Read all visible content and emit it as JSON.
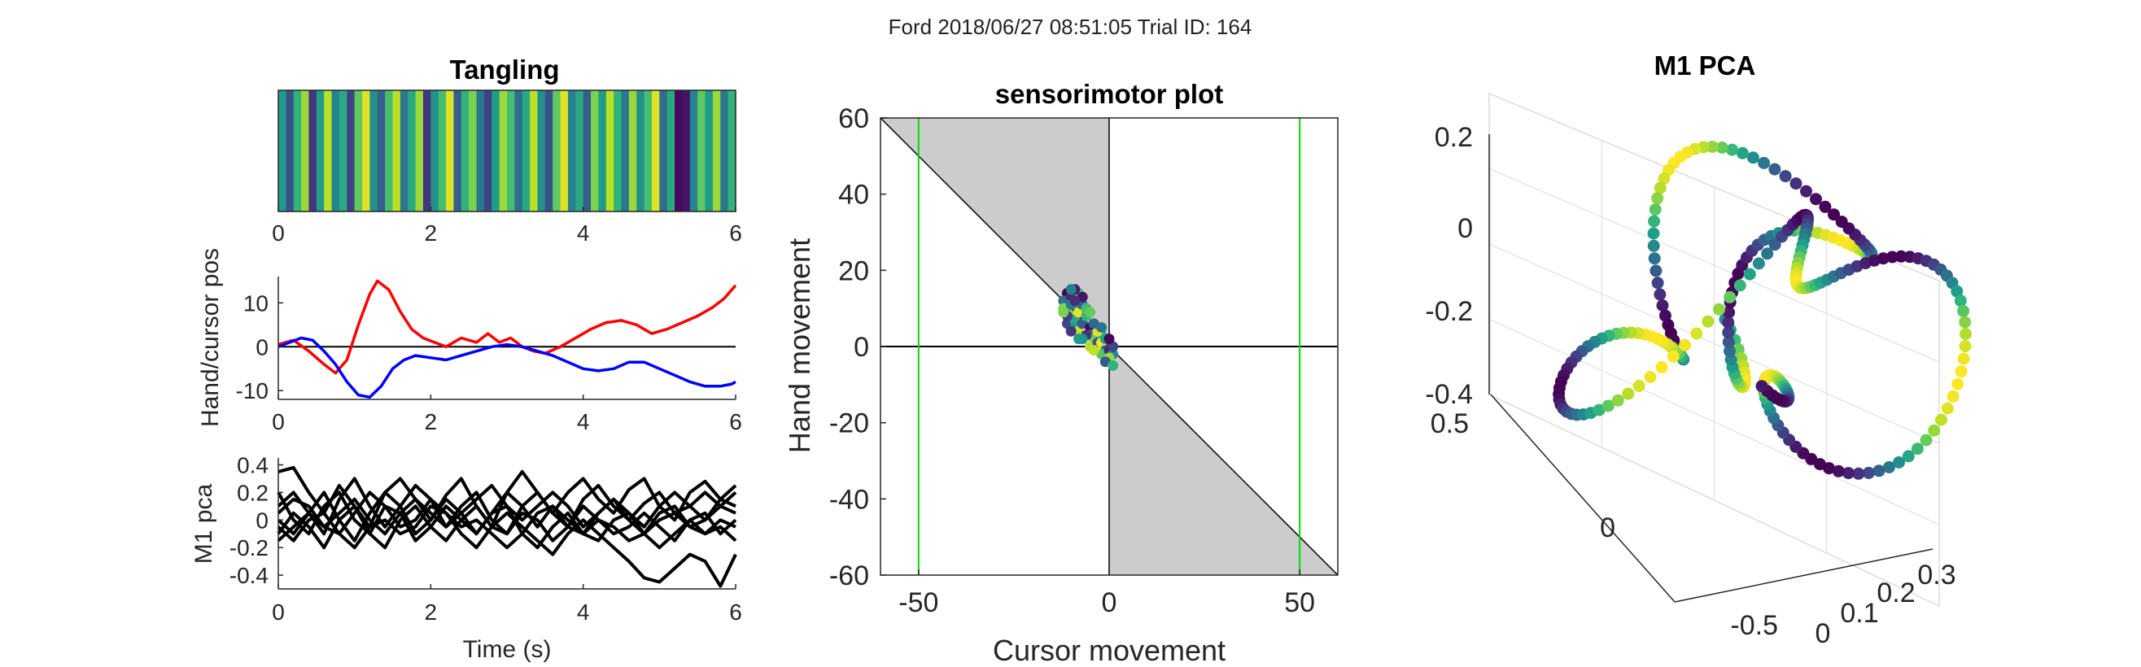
{
  "figure": {
    "suptitle": "Ford 2018/06/27 08:51:05 Trial ID: 164"
  },
  "chart_data": [
    {
      "type": "heatmap",
      "title": "Tangling",
      "x_ticks": [
        "0",
        "2",
        "4",
        "6"
      ],
      "xlim": [
        0,
        6
      ],
      "colormap": "viridis",
      "values": [
        0.55,
        0.25,
        0.65,
        0.85,
        0.15,
        0.55,
        0.9,
        0.45,
        0.6,
        0.2,
        0.75,
        0.95,
        0.5,
        0.3,
        0.7,
        0.9,
        0.4,
        0.6,
        0.85,
        0.15,
        0.5,
        0.7,
        0.95,
        0.3,
        0.65,
        0.8,
        0.4,
        0.2,
        0.55,
        0.85,
        0.7,
        0.35,
        0.6,
        0.9,
        0.5,
        0.25,
        0.75,
        0.95,
        0.45,
        0.6,
        0.3,
        0.8,
        0.55,
        0.9,
        0.65,
        0.4,
        0.85,
        0.5,
        0.7,
        0.95,
        0.35,
        0.6,
        0.02,
        0.05,
        0.45,
        0.75,
        0.55,
        0.85,
        0.4,
        0.65
      ]
    },
    {
      "type": "line",
      "ylabel": "Hand/cursor pos",
      "x_ticks": [
        "0",
        "2",
        "4",
        "6"
      ],
      "y_ticks": [
        "10",
        "0",
        "-10"
      ],
      "xlim": [
        0,
        6
      ],
      "ylim": [
        -12,
        16
      ],
      "hline": 0,
      "series": [
        {
          "color": "#ff0000",
          "x": [
            0,
            0.2,
            0.4,
            0.6,
            0.75,
            0.9,
            1.05,
            1.2,
            1.3,
            1.45,
            1.6,
            1.75,
            1.9,
            2.05,
            2.2,
            2.4,
            2.6,
            2.75,
            2.9,
            3.05,
            3.2,
            3.35,
            3.5,
            3.7,
            3.9,
            4.1,
            4.3,
            4.5,
            4.7,
            4.9,
            5.1,
            5.3,
            5.5,
            5.7,
            5.85,
            6.0
          ],
          "y": [
            0.5,
            1.5,
            -1,
            -4,
            -6,
            -3,
            5,
            12,
            15,
            13,
            8,
            4,
            2,
            1,
            0,
            2,
            1,
            3,
            1,
            2,
            0,
            -1,
            -1.5,
            0,
            2,
            4,
            5.5,
            6,
            5,
            3,
            4,
            5.5,
            7,
            9,
            11,
            14
          ]
        },
        {
          "color": "#0000ff",
          "x": [
            0,
            0.15,
            0.3,
            0.45,
            0.6,
            0.75,
            0.9,
            1.05,
            1.2,
            1.35,
            1.5,
            1.65,
            1.8,
            2.0,
            2.2,
            2.4,
            2.6,
            2.8,
            3.0,
            3.2,
            3.4,
            3.6,
            3.8,
            4.0,
            4.2,
            4.4,
            4.6,
            4.8,
            5.0,
            5.2,
            5.4,
            5.6,
            5.8,
            5.95,
            6.0
          ],
          "y": [
            0,
            1,
            2,
            1.5,
            -1,
            -4,
            -8,
            -11,
            -11.5,
            -9,
            -5,
            -3,
            -2,
            -2.5,
            -3,
            -2,
            -1,
            0,
            0.5,
            0,
            -1,
            -2,
            -3.5,
            -5,
            -5.5,
            -5,
            -3.5,
            -3.5,
            -5,
            -6.5,
            -8,
            -9,
            -9,
            -8.5,
            -8
          ]
        }
      ]
    },
    {
      "type": "line",
      "ylabel": "M1 pca",
      "xlabel": "Time (s)",
      "x_ticks": [
        "0",
        "2",
        "4",
        "6"
      ],
      "y_ticks": [
        "0.4",
        "0.2",
        "0",
        "-0.2",
        "-0.4"
      ],
      "xlim": [
        0,
        6
      ],
      "ylim": [
        -0.5,
        0.45
      ],
      "series_color": "#000000",
      "series": [
        {
          "y": [
            0.35,
            0.38,
            0.2,
            0.05,
            0.25,
            0.1,
            -0.05,
            0.2,
            0.3,
            0.15,
            0.0,
            0.18,
            0.3,
            0.1,
            -0.05,
            0.2,
            0.35,
            0.2,
            0.05,
            0.2,
            0.3,
            0.15,
            0.05,
            0.22,
            0.3,
            0.1,
            0.0,
            0.2,
            0.28,
            0.15,
            0.25
          ]
        },
        {
          "y": [
            0.1,
            0.2,
            0.05,
            -0.1,
            0.15,
            0.3,
            0.1,
            -0.05,
            0.1,
            0.25,
            0.15,
            -0.05,
            0.1,
            0.2,
            0.0,
            -0.1,
            0.1,
            0.2,
            0.05,
            -0.05,
            0.15,
            0.25,
            0.1,
            0.0,
            0.12,
            0.2,
            0.05,
            0.1,
            0.2,
            0.1,
            0.05
          ]
        },
        {
          "y": [
            0.0,
            -0.1,
            0.05,
            0.2,
            0.0,
            -0.15,
            0.05,
            0.2,
            0.1,
            -0.1,
            0.0,
            0.15,
            0.05,
            -0.1,
            0.05,
            0.2,
            0.1,
            -0.05,
            0.1,
            0.0,
            -0.1,
            0.05,
            0.15,
            0.0,
            -0.1,
            0.05,
            0.1,
            -0.05,
            0.0,
            0.15,
            0.1
          ]
        },
        {
          "y": [
            -0.1,
            0.05,
            -0.05,
            -0.2,
            0.0,
            0.1,
            -0.1,
            -0.2,
            0.0,
            0.1,
            -0.05,
            -0.15,
            0.0,
            0.1,
            -0.05,
            -0.1,
            0.05,
            0.0,
            -0.15,
            -0.05,
            0.1,
            0.0,
            -0.1,
            -0.05,
            0.05,
            -0.05,
            -0.15,
            0.0,
            0.05,
            -0.1,
            0.0
          ]
        },
        {
          "y": [
            0.2,
            0.0,
            -0.1,
            0.1,
            0.2,
            0.0,
            -0.1,
            0.1,
            0.05,
            -0.15,
            -0.05,
            0.1,
            0.0,
            -0.1,
            0.05,
            0.1,
            -0.1,
            -0.2,
            -0.05,
            0.05,
            -0.1,
            -0.15,
            0.0,
            0.05,
            -0.1,
            -0.2,
            -0.1,
            0.0,
            -0.1,
            -0.05,
            -0.15
          ]
        },
        {
          "y": [
            -0.05,
            -0.15,
            0.0,
            0.05,
            -0.1,
            -0.2,
            -0.05,
            0.0,
            -0.1,
            -0.05,
            0.1,
            0.05,
            -0.05,
            0.0,
            -0.1,
            -0.2,
            -0.1,
            0.05,
            0.1,
            -0.05,
            -0.1,
            0.0,
            -0.05,
            -0.15,
            -0.1,
            0.0,
            0.05,
            -0.05,
            -0.1,
            0.0,
            -0.05
          ]
        },
        {
          "y": [
            0.05,
            0.15,
            0.1,
            -0.05,
            -0.1,
            0.05,
            0.2,
            0.1,
            -0.05,
            0.0,
            0.15,
            0.05,
            -0.1,
            -0.2,
            -0.05,
            0.05,
            -0.05,
            -0.15,
            -0.25,
            -0.1,
            0.0,
            -0.1,
            -0.2,
            -0.3,
            -0.42,
            -0.45,
            -0.35,
            -0.25,
            -0.3,
            -0.48,
            -0.25
          ]
        },
        {
          "y": [
            -0.15,
            -0.05,
            0.05,
            -0.05,
            0.05,
            0.15,
            0.0,
            -0.1,
            0.05,
            0.15,
            0.05,
            -0.05,
            0.05,
            0.15,
            0.25,
            0.1,
            0.0,
            0.1,
            0.2,
            0.1,
            -0.05,
            0.05,
            0.15,
            0.05,
            -0.05,
            0.1,
            0.2,
            0.1,
            0.0,
            0.1,
            0.2
          ]
        }
      ]
    },
    {
      "type": "scatter",
      "title": "sensorimotor plot",
      "xlabel": "Cursor movement",
      "ylabel": "Hand movement",
      "x_ticks": [
        "-50",
        "0",
        "50"
      ],
      "y_ticks": [
        "60",
        "40",
        "20",
        "0",
        "-20",
        "-40",
        "-60"
      ],
      "xlim": [
        -60,
        60
      ],
      "ylim": [
        -60,
        60
      ],
      "shaded_regions": "gray regions between the line y = -x and the y axis",
      "vlines_green": [
        -50,
        50
      ],
      "hline": 0,
      "vline": 0,
      "points": [
        [
          -11,
          14
        ],
        [
          -12,
          12
        ],
        [
          -11,
          10
        ],
        [
          -10,
          13
        ],
        [
          -9,
          11
        ],
        [
          -10,
          8
        ],
        [
          -11,
          6
        ],
        [
          -9,
          7
        ],
        [
          -8,
          9
        ],
        [
          -7,
          11
        ],
        [
          -8,
          14
        ],
        [
          -9,
          15
        ],
        [
          -10,
          15
        ],
        [
          -12,
          10
        ],
        [
          -11,
          8
        ],
        [
          -9,
          5
        ],
        [
          -8,
          4
        ],
        [
          -7,
          6
        ],
        [
          -6,
          8
        ],
        [
          -5,
          5
        ],
        [
          -5,
          3
        ],
        [
          -4,
          2
        ],
        [
          -6,
          3
        ],
        [
          -7,
          2
        ],
        [
          -5,
          0
        ],
        [
          -3,
          1
        ],
        [
          -2,
          3
        ],
        [
          -2,
          1
        ],
        [
          -1,
          -1
        ],
        [
          -2,
          -2
        ],
        [
          0,
          -1
        ],
        [
          1,
          -2
        ],
        [
          0,
          -3
        ],
        [
          1,
          0
        ],
        [
          -1,
          2
        ],
        [
          -3,
          4
        ],
        [
          -4,
          6
        ],
        [
          -6,
          10
        ],
        [
          -7,
          13
        ],
        [
          -10,
          11
        ],
        [
          -12,
          9
        ],
        [
          -10,
          4
        ],
        [
          -8,
          2
        ],
        [
          -4,
          -1
        ],
        [
          -1,
          -4
        ],
        [
          1,
          -5
        ],
        [
          0,
          2
        ],
        [
          -2,
          5
        ],
        [
          -5,
          9
        ],
        [
          -9,
          12
        ]
      ]
    },
    {
      "type": "scatter",
      "title": "M1 PCA",
      "z_ticks": [
        "0.2",
        "0",
        "-0.2",
        "-0.4"
      ],
      "y_ticks": [
        "0.5",
        "0",
        "-0.5"
      ],
      "x_ticks": [
        "0",
        "0.1",
        "0.2",
        "0.3"
      ],
      "colormap": "viridis"
    }
  ]
}
